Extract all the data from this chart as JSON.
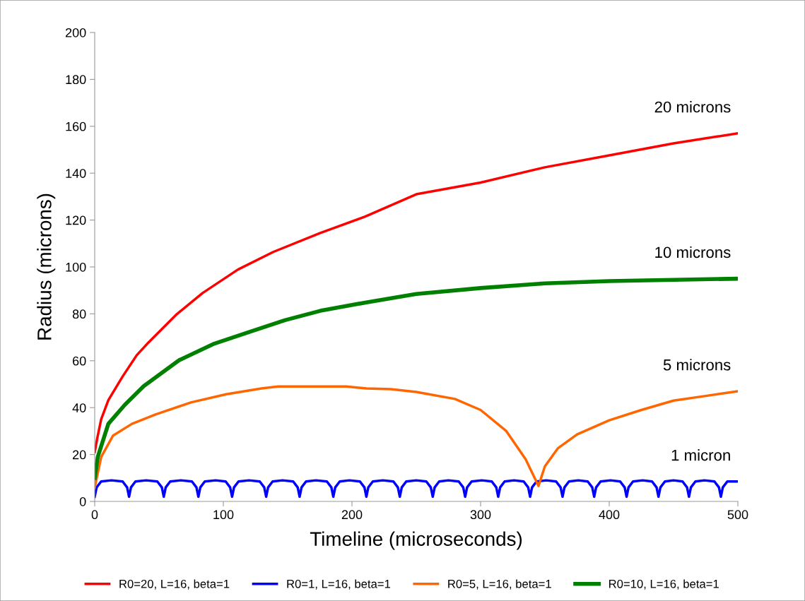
{
  "chart_data": {
    "type": "line",
    "xlabel": "Timeline (microseconds)",
    "ylabel": "Radius (microns)",
    "xlim": [
      0,
      500
    ],
    "xticks": [
      0,
      100,
      200,
      300,
      400,
      500
    ],
    "ylim": [
      0,
      200
    ],
    "yticks": [
      0,
      20,
      40,
      60,
      80,
      100,
      120,
      140,
      160,
      180,
      200
    ],
    "grid": false,
    "legend": "bottom",
    "marker": "none",
    "line_style": "solid",
    "series": [
      {
        "name": "R0=20, L=16, beta=1",
        "color": "#ff0000",
        "x": [
          0,
          2,
          5,
          10.6,
          21.6,
          32.6,
          41.8,
          63.7,
          83.9,
          111.4,
          138.8,
          175.4,
          210.3,
          250,
          300,
          350,
          400,
          450,
          500
        ],
        "values": [
          21,
          27,
          35,
          43.2,
          53.2,
          62.3,
          67.8,
          79.8,
          88.9,
          98.9,
          106.4,
          114.5,
          121.5,
          131,
          136,
          142.5,
          147.6,
          152.7,
          157
        ]
      },
      {
        "name": "R0=1, L=16, beta=1",
        "color": "#0000ff",
        "x": [
          0,
          1.5,
          5,
          13,
          21.7,
          25.2,
          26.7,
          28.2,
          31.7,
          40,
          48.7,
          52.2,
          53.7,
          55.2,
          58.7,
          67,
          75.6,
          79.1,
          80.6,
          82.1,
          85.6,
          94,
          101.8,
          105.3,
          106.8,
          108.3,
          111.8,
          120,
          128.3,
          131.8,
          133.3,
          134.8,
          138.3,
          146,
          154.3,
          157.8,
          159.3,
          160.8,
          164.3,
          172,
          180.5,
          184,
          185.5,
          187,
          190.5,
          198,
          206.2,
          209.7,
          211.2,
          212.7,
          216.2,
          224,
          232.2,
          235.7,
          237.2,
          238.7,
          242.2,
          250,
          257.8,
          261.3,
          262.8,
          264.3,
          267.8,
          275,
          283,
          286.5,
          288,
          289.5,
          293,
          301,
          308.7,
          312.2,
          313.7,
          315.2,
          318.7,
          326,
          333.5,
          337,
          338.5,
          340,
          343.5,
          351,
          358.7,
          362.2,
          363.7,
          365.2,
          368.7,
          376,
          383.3,
          386.8,
          388.3,
          389.8,
          393.3,
          401,
          408.5,
          412,
          413.5,
          415,
          418.5,
          426,
          433.3,
          436.8,
          438.3,
          439.8,
          443.3,
          450,
          457,
          460.5,
          462,
          463.5,
          467,
          474,
          481.8,
          485.3,
          486.8,
          488.3,
          491.8,
          497,
          500
        ],
        "values": [
          2,
          6,
          8.5,
          9,
          8.5,
          6,
          2,
          6,
          8.5,
          9,
          8.5,
          6,
          2,
          6,
          8.5,
          9,
          8.5,
          6,
          2,
          6,
          8.5,
          9,
          8.5,
          6,
          2,
          6,
          8.5,
          9,
          8.5,
          6,
          2,
          6,
          8.5,
          9,
          8.5,
          6,
          2,
          6,
          8.5,
          9,
          8.5,
          6,
          2,
          6,
          8.5,
          9,
          8.5,
          6,
          2,
          6,
          8.5,
          9,
          8.5,
          6,
          2,
          6,
          8.5,
          9,
          8.5,
          6,
          2,
          6,
          8.5,
          9,
          8.5,
          6,
          2,
          6,
          8.5,
          9,
          8.5,
          6,
          2,
          6,
          8.5,
          9,
          8.5,
          6,
          2,
          6,
          8.5,
          9,
          8.5,
          6,
          2,
          6,
          8.5,
          9,
          8.5,
          6,
          2,
          6,
          8.5,
          9,
          8.5,
          6,
          2,
          6,
          8.5,
          9,
          8.5,
          6,
          2,
          6,
          8.5,
          9,
          8.5,
          6,
          2,
          6,
          8.5,
          9,
          8.5,
          6,
          2,
          6,
          8.5,
          8.5,
          8.5
        ]
      },
      {
        "name": "R0=5, L=16, beta=1",
        "color": "#ff6600",
        "x": [
          0,
          5.1,
          14.3,
          29,
          47.3,
          74.7,
          102.2,
          129.7,
          142.5,
          195.6,
          211.2,
          230,
          250,
          280,
          300,
          320,
          335,
          345,
          350,
          360,
          375,
          400,
          425,
          450,
          475,
          500
        ],
        "values": [
          6,
          19,
          28.1,
          33.1,
          37.1,
          42.2,
          45.7,
          48.2,
          49,
          49,
          48.2,
          47.9,
          46.7,
          43.7,
          39,
          30,
          18,
          6.6,
          15,
          22.6,
          28.6,
          34.6,
          39,
          43,
          45,
          47
        ]
      },
      {
        "name": "R0=10, L=16, beta=1",
        "color": "#008000",
        "x": [
          0,
          2.4,
          10.6,
          23.4,
          38.1,
          65.5,
          93,
          120.5,
          147.9,
          175.4,
          210.3,
          250,
          300,
          350,
          400,
          500
        ],
        "values": [
          10,
          19,
          33.1,
          41.2,
          49.2,
          60.2,
          67.3,
          72.3,
          77.3,
          81.3,
          84.8,
          88.5,
          91,
          93,
          94,
          95
        ]
      }
    ],
    "annotations": [
      "20 microns",
      "10 microns",
      "5 microns",
      "1 micron"
    ]
  }
}
